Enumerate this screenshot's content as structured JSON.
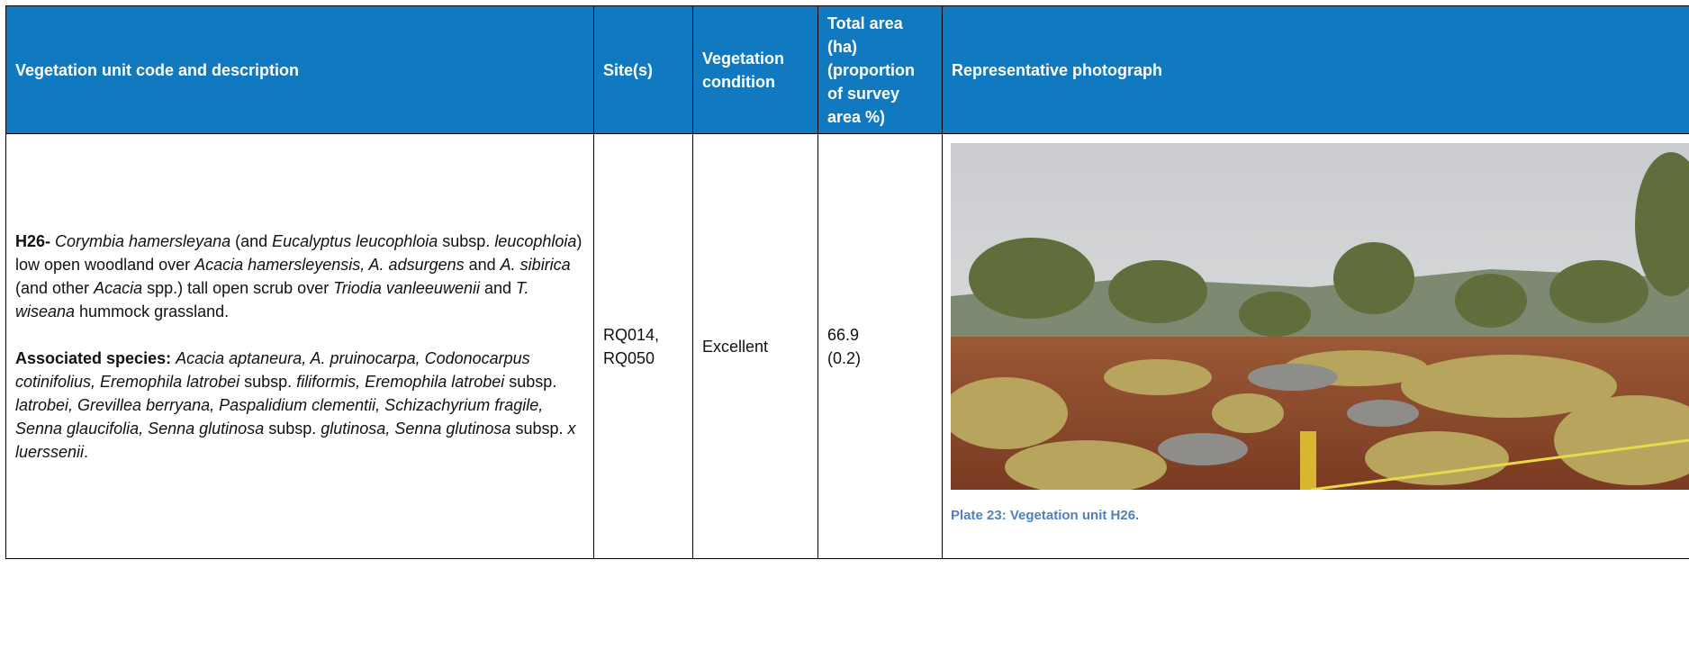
{
  "table": {
    "headers": [
      "Vegetation unit code and description",
      "Site(s)",
      "Vegetation condition",
      "Total area (ha) (proportion of survey area %)",
      "Representative photograph"
    ],
    "rows": [
      {
        "description": [
          [
            {
              "text": "H26- ",
              "style": "bold"
            },
            {
              "text": "Corymbia hamersleyana",
              "style": "italic"
            },
            {
              "text": " (and ",
              "style": "normal"
            },
            {
              "text": "Eucalyptus leucophloia",
              "style": "italic"
            },
            {
              "text": " subsp. ",
              "style": "normal"
            },
            {
              "text": "leucophloia",
              "style": "italic"
            },
            {
              "text": ") low open woodland over ",
              "style": "normal"
            },
            {
              "text": "Acacia hamersleyensis, A. adsurgens",
              "style": "italic"
            },
            {
              "text": " and ",
              "style": "normal"
            },
            {
              "text": "A. sibirica",
              "style": "italic"
            },
            {
              "text": " (and other ",
              "style": "normal"
            },
            {
              "text": "Acacia",
              "style": "italic"
            },
            {
              "text": " spp.) tall open scrub over ",
              "style": "normal"
            },
            {
              "text": "Triodia vanleeuwenii",
              "style": "italic"
            },
            {
              "text": " and ",
              "style": "normal"
            },
            {
              "text": "T. wiseana",
              "style": "italic"
            },
            {
              "text": " hummock grassland.",
              "style": "normal"
            }
          ],
          [
            {
              "text": "Associated species: ",
              "style": "bold"
            },
            {
              "text": "Acacia aptaneura, A. pruinocarpa, Codonocarpus cotinifolius, Eremophila latrobei",
              "style": "italic"
            },
            {
              "text": " subsp. ",
              "style": "normal"
            },
            {
              "text": "filiformis, Eremophila latrobei",
              "style": "italic"
            },
            {
              "text": " subsp. ",
              "style": "normal"
            },
            {
              "text": "latrobei, Grevillea berryana, Paspalidium clementii, Schizachyrium fragile, Senna glaucifolia, Senna glutinosa",
              "style": "italic"
            },
            {
              "text": " subsp. ",
              "style": "normal"
            },
            {
              "text": "glutinosa, Senna glutinosa",
              "style": "italic"
            },
            {
              "text": " subsp. ",
              "style": "normal"
            },
            {
              "text": "x luerssenii",
              "style": "italic"
            },
            {
              "text": ".",
              "style": "normal"
            }
          ]
        ],
        "sites": "RQ014, RQ050",
        "condition": "Excellent",
        "area": [
          "66.9",
          "(0.2)"
        ],
        "caption": "Plate 23: Vegetation unit H26."
      }
    ]
  }
}
